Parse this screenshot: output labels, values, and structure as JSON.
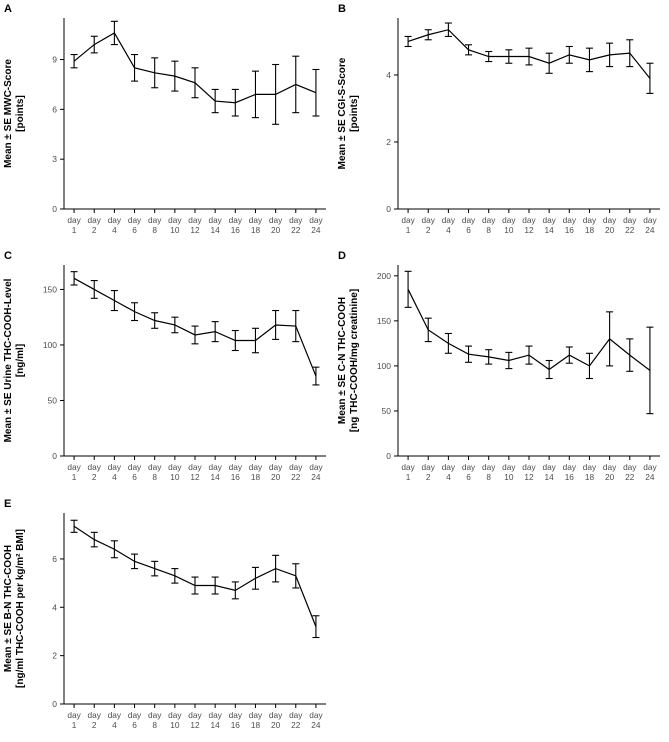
{
  "figure": {
    "background": "#ffffff",
    "line_color": "#000000",
    "axis_color": "#000000",
    "text_color": "#4d4d4d"
  },
  "chart_data": [
    {
      "panel_label": "A",
      "type": "line",
      "title": "",
      "xlabel": "",
      "ylabel_lines": [
        "Mean ± SE MWC-Score",
        "[points]"
      ],
      "categories": [
        "day 1",
        "day 2",
        "day 4",
        "day 6",
        "day 8",
        "day 10",
        "day 12",
        "day 14",
        "day 16",
        "day 18",
        "day 20",
        "day 22",
        "day 24"
      ],
      "values": [
        8.9,
        9.9,
        10.6,
        8.5,
        8.2,
        8.0,
        7.6,
        6.5,
        6.4,
        6.9,
        6.9,
        7.5,
        7.0
      ],
      "se": [
        0.4,
        0.5,
        0.7,
        0.8,
        0.9,
        0.9,
        0.9,
        0.7,
        0.8,
        1.4,
        1.8,
        1.7,
        1.4
      ],
      "yticks": [
        0,
        3,
        6,
        9
      ],
      "ylim": [
        0,
        11.5
      ],
      "grid": false,
      "legend": false
    },
    {
      "panel_label": "B",
      "type": "line",
      "title": "",
      "xlabel": "",
      "ylabel_lines": [
        "Mean ± SE CGI-S-Score",
        "[points]"
      ],
      "categories": [
        "day 1",
        "day 2",
        "day 4",
        "day 6",
        "day 8",
        "day 10",
        "day 12",
        "day 14",
        "day 16",
        "day 18",
        "day 20",
        "day 22",
        "day 24"
      ],
      "values": [
        5.0,
        5.2,
        5.35,
        4.75,
        4.55,
        4.55,
        4.55,
        4.35,
        4.6,
        4.45,
        4.6,
        4.65,
        3.9
      ],
      "se": [
        0.15,
        0.15,
        0.2,
        0.15,
        0.15,
        0.2,
        0.25,
        0.3,
        0.25,
        0.35,
        0.35,
        0.4,
        0.45
      ],
      "yticks": [
        0,
        2,
        4
      ],
      "ylim": [
        0,
        5.7
      ],
      "grid": false,
      "legend": false
    },
    {
      "panel_label": "C",
      "type": "line",
      "title": "",
      "xlabel": "",
      "ylabel_lines": [
        "Mean ± SE Urine THC-COOH-Level",
        "[ng/ml]"
      ],
      "categories": [
        "day 1",
        "day 2",
        "day 4",
        "day 6",
        "day 8",
        "day 10",
        "day 12",
        "day 14",
        "day 16",
        "day 18",
        "day 20",
        "day 22",
        "day 24"
      ],
      "values": [
        160,
        150,
        140,
        130,
        122,
        118,
        109,
        112,
        104,
        104,
        118,
        117,
        72
      ],
      "se": [
        6,
        8,
        9,
        8,
        7,
        7,
        8,
        9,
        9,
        11,
        13,
        14,
        8
      ],
      "yticks": [
        0,
        50,
        100,
        150
      ],
      "ylim": [
        0,
        172
      ],
      "grid": false,
      "legend": false
    },
    {
      "panel_label": "D",
      "type": "line",
      "title": "",
      "xlabel": "",
      "ylabel_lines": [
        "Mean ± SE C-N THC-COOH",
        "[ng THC-COOH/mg creatinine]"
      ],
      "categories": [
        "day 1",
        "day 2",
        "day 4",
        "day 6",
        "day 8",
        "day 10",
        "day 12",
        "day 14",
        "day 16",
        "day 18",
        "day 20",
        "day 22",
        "day 24"
      ],
      "values": [
        185,
        140,
        125,
        113,
        110,
        106,
        112,
        96,
        112,
        100,
        130,
        112,
        95
      ],
      "se": [
        20,
        13,
        11,
        9,
        8,
        9,
        10,
        10,
        9,
        14,
        30,
        18,
        48
      ],
      "yticks": [
        0,
        50,
        100,
        150,
        200
      ],
      "ylim": [
        0,
        212
      ],
      "grid": false,
      "legend": false
    },
    {
      "panel_label": "E",
      "type": "line",
      "title": "",
      "xlabel": "",
      "ylabel_lines": [
        "Mean ± SE B-N THC-COOH",
        "[ng/ml THC-COOH per kg/m² BMI]"
      ],
      "categories": [
        "day 1",
        "day 2",
        "day 4",
        "day 6",
        "day 8",
        "day 10",
        "day 12",
        "day 14",
        "day 16",
        "day 18",
        "day 20",
        "day 22",
        "day 24"
      ],
      "values": [
        7.35,
        6.8,
        6.4,
        5.9,
        5.6,
        5.3,
        4.9,
        4.9,
        4.7,
        5.2,
        5.6,
        5.3,
        3.2
      ],
      "se": [
        0.25,
        0.3,
        0.35,
        0.3,
        0.3,
        0.3,
        0.35,
        0.35,
        0.35,
        0.45,
        0.55,
        0.5,
        0.45
      ],
      "yticks": [
        0,
        2,
        4,
        6
      ],
      "ylim": [
        0,
        7.9
      ],
      "grid": false,
      "legend": false
    }
  ]
}
